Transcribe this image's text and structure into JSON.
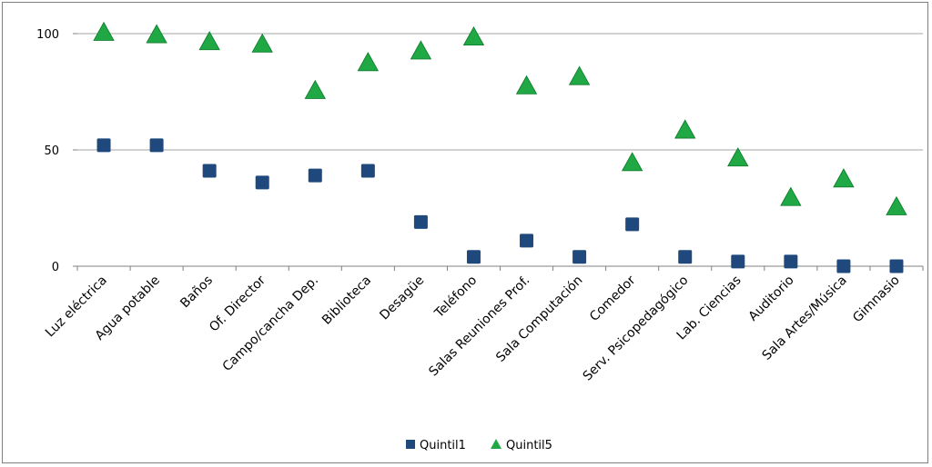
{
  "chart_data": {
    "type": "scatter",
    "title": "",
    "xlabel": "",
    "ylabel": "",
    "ylim": [
      0,
      100
    ],
    "yticks": [
      0,
      50,
      100
    ],
    "grid": true,
    "legend_position": "bottom",
    "categories": [
      "Luz eléctrica",
      "Agua potable",
      "Baños",
      "Of. Director",
      "Campo/cancha Dep.",
      "Biblioteca",
      "Desagüe",
      "Teléfono",
      "Salas Reuniones Prof.",
      "Sala Computación",
      "Comedor",
      "Serv. Psicopedagógico",
      "Lab. Ciencias",
      "Auditorio",
      "Sala Artes/Música",
      "Gimnasio"
    ],
    "series": [
      {
        "name": "Quintil1",
        "marker": "square",
        "color": "#1f497d",
        "values": [
          52,
          52,
          41,
          36,
          39,
          41,
          19,
          4,
          11,
          4,
          18,
          4,
          2,
          2,
          0,
          0
        ]
      },
      {
        "name": "Quintil5",
        "marker": "triangle",
        "color": "#1fa843",
        "values": [
          100,
          99,
          96,
          95,
          75,
          87,
          92,
          98,
          77,
          81,
          44,
          58,
          46,
          29,
          37,
          25
        ]
      }
    ]
  }
}
